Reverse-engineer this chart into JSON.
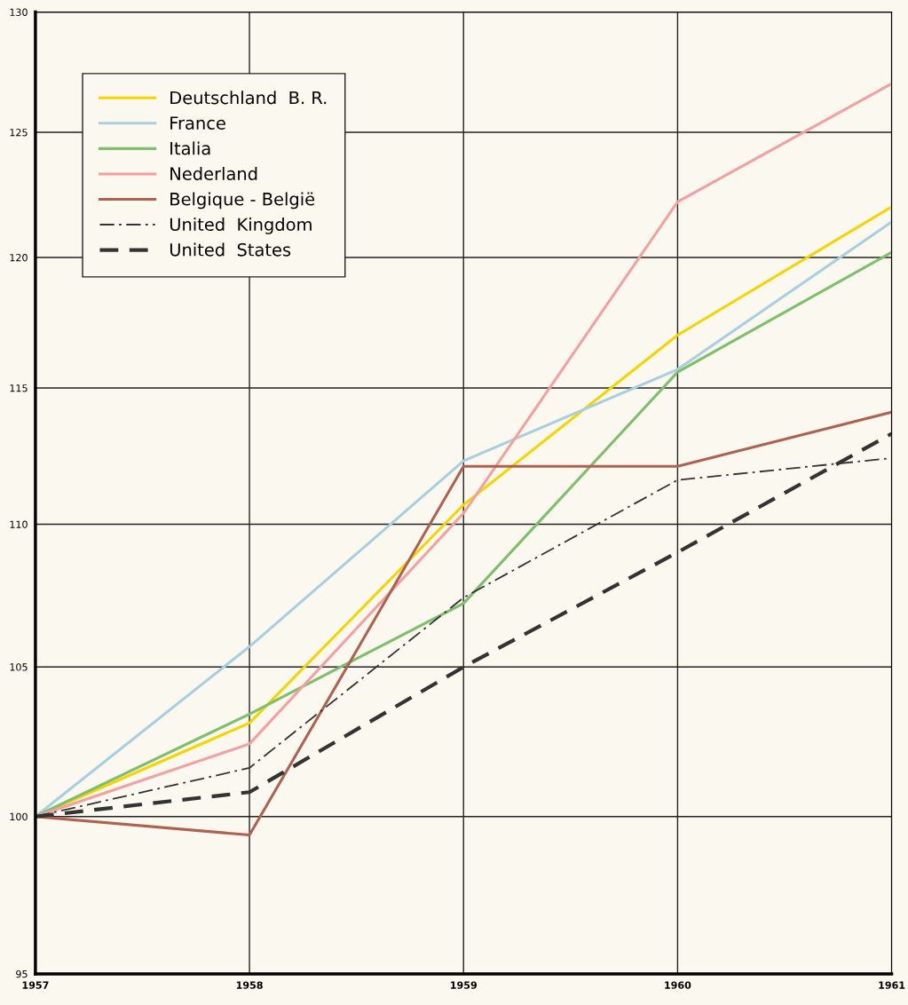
{
  "chart_data": {
    "type": "line",
    "x": [
      1957,
      1958,
      1959,
      1960,
      1961
    ],
    "series": [
      {
        "name": "Deutschland  B. R.",
        "color": "#f5d400",
        "values": [
          100,
          103.1,
          110.7,
          117.0,
          122.0
        ]
      },
      {
        "name": "France",
        "color": "#a8cfe0",
        "values": [
          100,
          105.7,
          112.3,
          115.7,
          121.4
        ]
      },
      {
        "name": "Italia",
        "color": "#7dbf6a",
        "values": [
          100,
          103.4,
          107.2,
          115.6,
          120.2
        ]
      },
      {
        "name": "Nederland",
        "color": "#f4a0a0",
        "values": [
          100,
          102.4,
          110.4,
          122.2,
          127.0
        ]
      },
      {
        "name": "Belgique - België",
        "color": "#b0604f",
        "values": [
          100,
          99.4,
          112.1,
          112.1,
          114.1
        ]
      },
      {
        "name": "United  Kingdom",
        "color": "#333333",
        "line_style": "dashdot",
        "values": [
          100,
          101.6,
          107.4,
          111.6,
          112.4
        ]
      },
      {
        "name": "United  States",
        "color": "#333333",
        "line_style": "dashed",
        "values": [
          100,
          100.8,
          105.0,
          109.0,
          113.3
        ]
      }
    ],
    "log": "y",
    "xlim": [
      1957,
      1961
    ],
    "ylim": [
      95,
      130
    ],
    "xticks": [
      1957,
      1958,
      1959,
      1960,
      1961
    ],
    "yticks": [
      95,
      100,
      105,
      110,
      115,
      120,
      125,
      130
    ],
    "grid": true,
    "legend": "top left",
    "marker": "none"
  }
}
